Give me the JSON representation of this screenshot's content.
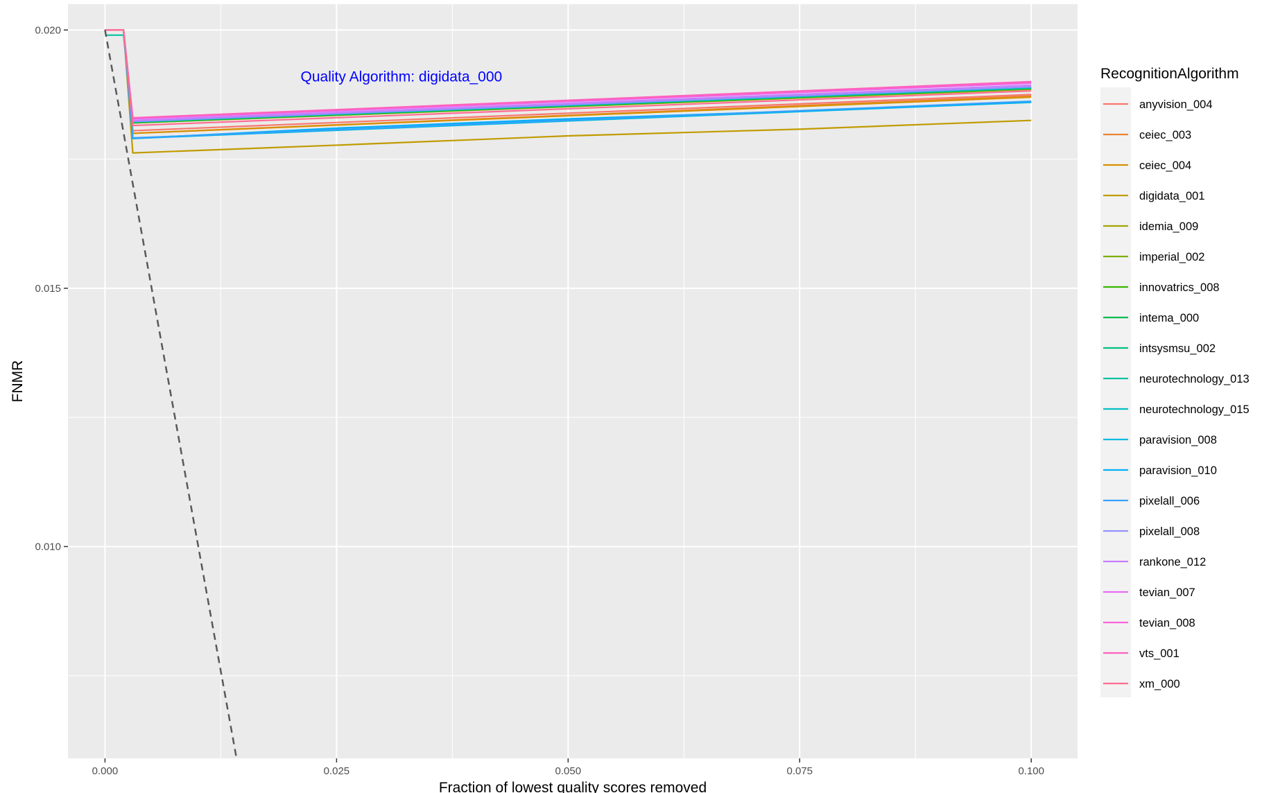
{
  "chart_data": {
    "type": "line",
    "xlabel": "Fraction of lowest quality scores removed",
    "ylabel": "FNMR",
    "xlim": [
      -0.004,
      0.105
    ],
    "ylim": [
      0.0059,
      0.0205
    ],
    "x_ticks": [
      0.0,
      0.025,
      0.05,
      0.075,
      0.1
    ],
    "x_tick_labels": [
      "0.000",
      "0.025",
      "0.050",
      "0.075",
      "0.100"
    ],
    "y_ticks": [
      0.01,
      0.015,
      0.02
    ],
    "y_tick_labels": [
      "0.010",
      "0.015",
      "0.020"
    ],
    "grid": true,
    "legend_position": "right",
    "legend_title": "RecognitionAlgorithm",
    "annotation": {
      "text": "Quality Algorithm: digidata_000",
      "x": 0.032,
      "y": 0.0191,
      "color": "#0000ff"
    },
    "reference_line": {
      "style": "dashed",
      "color": "#595959",
      "points": [
        [
          0.0,
          0.02
        ],
        [
          0.0142,
          0.0059
        ]
      ]
    },
    "series": [
      {
        "name": "anyvision_004",
        "color": "#F8766D",
        "values": [
          [
            0,
            0.02
          ],
          [
            0.002,
            0.02
          ],
          [
            0.003,
            0.01805
          ],
          [
            0.1,
            0.01875
          ]
        ]
      },
      {
        "name": "ceiec_003",
        "color": "#EA8331",
        "values": [
          [
            0,
            0.02
          ],
          [
            0.002,
            0.02
          ],
          [
            0.003,
            0.018
          ],
          [
            0.1,
            0.01872
          ]
        ]
      },
      {
        "name": "ceiec_004",
        "color": "#D89000",
        "values": [
          [
            0,
            0.02
          ],
          [
            0.002,
            0.02
          ],
          [
            0.003,
            0.018
          ],
          [
            0.1,
            0.0187
          ]
        ]
      },
      {
        "name": "digidata_001",
        "color": "#C09B00",
        "values": [
          [
            0,
            0.02
          ],
          [
            0.002,
            0.02
          ],
          [
            0.003,
            0.01762
          ],
          [
            0.025,
            0.01777
          ],
          [
            0.05,
            0.01795
          ],
          [
            0.075,
            0.01808
          ],
          [
            0.1,
            0.01825
          ]
        ]
      },
      {
        "name": "idemia_009",
        "color": "#A3A500",
        "values": [
          [
            0,
            0.02
          ],
          [
            0.002,
            0.02
          ],
          [
            0.003,
            0.0182
          ],
          [
            0.1,
            0.01885
          ]
        ]
      },
      {
        "name": "imperial_002",
        "color": "#7CAE00",
        "values": [
          [
            0,
            0.02
          ],
          [
            0.002,
            0.02
          ],
          [
            0.003,
            0.0182
          ],
          [
            0.1,
            0.01886
          ]
        ]
      },
      {
        "name": "innovatrics_008",
        "color": "#39B600",
        "values": [
          [
            0,
            0.02
          ],
          [
            0.002,
            0.02
          ],
          [
            0.003,
            0.01821
          ],
          [
            0.1,
            0.01887
          ]
        ]
      },
      {
        "name": "intema_000",
        "color": "#00BB4E",
        "values": [
          [
            0,
            0.02
          ],
          [
            0.002,
            0.02
          ],
          [
            0.003,
            0.01821
          ],
          [
            0.1,
            0.01887
          ]
        ]
      },
      {
        "name": "intsysmsu_002",
        "color": "#00BF7D",
        "values": [
          [
            0,
            0.02
          ],
          [
            0.002,
            0.02
          ],
          [
            0.003,
            0.01822
          ],
          [
            0.1,
            0.01888
          ]
        ]
      },
      {
        "name": "neurotechnology_013",
        "color": "#00C1A3",
        "values": [
          [
            0,
            0.0199
          ],
          [
            0.002,
            0.0199
          ],
          [
            0.003,
            0.01822
          ],
          [
            0.1,
            0.01888
          ]
        ]
      },
      {
        "name": "neurotechnology_015",
        "color": "#00BFC4",
        "values": [
          [
            0,
            0.02
          ],
          [
            0.002,
            0.02
          ],
          [
            0.003,
            0.01823
          ],
          [
            0.1,
            0.01889
          ]
        ]
      },
      {
        "name": "paravision_008",
        "color": "#00BAE0",
        "values": [
          [
            0,
            0.02
          ],
          [
            0.002,
            0.02
          ],
          [
            0.003,
            0.0179
          ],
          [
            0.1,
            0.0186
          ]
        ]
      },
      {
        "name": "paravision_010",
        "color": "#00B0F6",
        "values": [
          [
            0,
            0.02
          ],
          [
            0.002,
            0.02
          ],
          [
            0.003,
            0.0179
          ],
          [
            0.025,
            0.0181
          ],
          [
            0.05,
            0.01828
          ],
          [
            0.075,
            0.01843
          ],
          [
            0.1,
            0.01861
          ]
        ]
      },
      {
        "name": "pixelall_006",
        "color": "#35A2FF",
        "values": [
          [
            0,
            0.02
          ],
          [
            0.002,
            0.02
          ],
          [
            0.003,
            0.01791
          ],
          [
            0.1,
            0.01862
          ]
        ]
      },
      {
        "name": "pixelall_008",
        "color": "#9590FF",
        "values": [
          [
            0,
            0.02
          ],
          [
            0.002,
            0.02
          ],
          [
            0.003,
            0.01823
          ],
          [
            0.1,
            0.0189
          ]
        ]
      },
      {
        "name": "rankone_012",
        "color": "#C77CFF",
        "values": [
          [
            0,
            0.02
          ],
          [
            0.002,
            0.02
          ],
          [
            0.003,
            0.01825
          ],
          [
            0.1,
            0.01893
          ]
        ]
      },
      {
        "name": "tevian_007",
        "color": "#E76BF3",
        "values": [
          [
            0,
            0.02
          ],
          [
            0.002,
            0.02
          ],
          [
            0.003,
            0.01828
          ],
          [
            0.1,
            0.01897
          ]
        ]
      },
      {
        "name": "tevian_008",
        "color": "#FA62DB",
        "values": [
          [
            0,
            0.02
          ],
          [
            0.002,
            0.02
          ],
          [
            0.003,
            0.01829
          ],
          [
            0.1,
            0.01898
          ]
        ]
      },
      {
        "name": "vts_001",
        "color": "#FF62BC",
        "values": [
          [
            0,
            0.02
          ],
          [
            0.002,
            0.02
          ],
          [
            0.003,
            0.0183
          ],
          [
            0.1,
            0.019
          ]
        ]
      },
      {
        "name": "xm_000",
        "color": "#FF6C91",
        "values": [
          [
            0,
            0.02
          ],
          [
            0.002,
            0.02
          ],
          [
            0.003,
            0.01815
          ],
          [
            0.1,
            0.01882
          ]
        ]
      }
    ]
  }
}
